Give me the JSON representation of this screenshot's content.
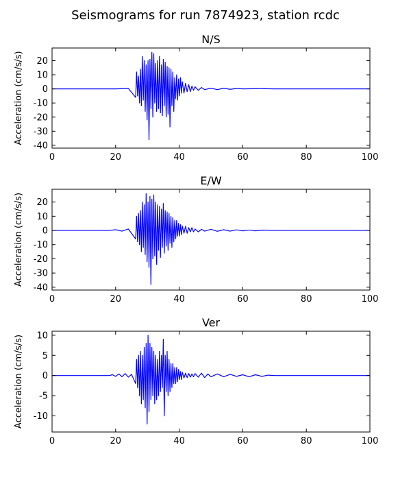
{
  "figure": {
    "title": "Seismograms for run 7874923, station rcdc"
  },
  "chart_data": [
    {
      "type": "line",
      "title": "N/S",
      "xlabel": "",
      "ylabel": "Acceleration (cm/s/s)",
      "xlim": [
        0,
        100
      ],
      "ylim": [
        -42,
        29
      ],
      "xticks": [
        0,
        20,
        40,
        60,
        80,
        100
      ],
      "yticks": [
        -40,
        -30,
        -20,
        -10,
        0,
        10,
        20
      ],
      "grid": false,
      "color": "#0000ff",
      "series": [
        {
          "x": [
            0,
            20,
            24,
            26.3,
            26.6,
            26.9,
            27.2,
            27.5,
            27.8,
            28.1,
            28.4,
            28.7,
            29.0,
            29.3,
            29.6,
            29.9,
            30.2,
            30.5,
            30.8,
            31.1,
            31.4,
            31.7,
            32.0,
            32.3,
            32.6,
            32.9,
            33.2,
            33.5,
            33.8,
            34.1,
            34.4,
            34.7,
            35.0,
            35.3,
            35.6,
            35.9,
            36.2,
            36.5,
            36.8,
            37.1,
            37.4,
            37.7,
            38.0,
            38.3,
            38.6,
            38.9,
            39.2,
            39.5,
            39.8,
            40.1,
            40.4,
            40.7,
            41.0,
            41.5,
            42.0,
            42.5,
            43.0,
            43.5,
            44.0,
            44.5,
            45.0,
            46.0,
            47.0,
            48,
            50,
            52,
            54,
            56,
            58,
            60,
            65,
            70,
            100
          ],
          "y": [
            0,
            0,
            0.3,
            -6,
            12,
            -5,
            9,
            -10,
            14,
            -12,
            23,
            -8,
            20,
            -16,
            17,
            -22,
            20,
            -36,
            21,
            -14,
            26,
            -20,
            25,
            -10,
            18,
            -16,
            20,
            -14,
            23,
            -17,
            17,
            -19,
            21,
            -12,
            19,
            -20,
            16,
            -18,
            15,
            -27,
            14,
            -12,
            12,
            -16,
            8,
            -7,
            10,
            -8,
            7,
            -5,
            8,
            -3,
            5,
            -3,
            4,
            -2,
            3,
            -2,
            2,
            -1,
            1.5,
            -1,
            1,
            -0.5,
            0.5,
            -0.5,
            0.5,
            -0.3,
            0.3,
            0,
            0.2,
            0,
            0
          ]
        }
      ]
    },
    {
      "type": "line",
      "title": "E/W",
      "xlabel": "",
      "ylabel": "Acceleration (cm/s/s)",
      "xlim": [
        0,
        100
      ],
      "ylim": [
        -42,
        29
      ],
      "xticks": [
        0,
        20,
        40,
        60,
        80,
        100
      ],
      "yticks": [
        -40,
        -30,
        -20,
        -10,
        0,
        10,
        20
      ],
      "grid": false,
      "color": "#0000ff",
      "series": [
        {
          "x": [
            0,
            18,
            20,
            22,
            24,
            26.3,
            26.6,
            26.9,
            27.2,
            27.5,
            27.8,
            28.1,
            28.4,
            28.7,
            29.0,
            29.3,
            29.6,
            29.9,
            30.2,
            30.5,
            30.8,
            31.1,
            31.4,
            31.7,
            32.0,
            32.3,
            32.6,
            32.9,
            33.2,
            33.5,
            33.8,
            34.1,
            34.4,
            34.7,
            35.0,
            35.3,
            35.6,
            35.9,
            36.2,
            36.5,
            36.8,
            37.1,
            37.4,
            37.7,
            38.0,
            38.3,
            38.6,
            38.9,
            39.2,
            39.5,
            39.8,
            40.1,
            40.4,
            40.7,
            41.0,
            41.5,
            42.0,
            42.5,
            43.0,
            43.5,
            44.0,
            44.5,
            45.0,
            46.0,
            47.0,
            48,
            50,
            52,
            54,
            56,
            58,
            60,
            62,
            64,
            66,
            70,
            100
          ],
          "y": [
            0,
            0,
            0.5,
            -0.5,
            1,
            -6,
            10,
            -8,
            12,
            -10,
            14,
            -15,
            20,
            -12,
            18,
            -17,
            26,
            -22,
            20,
            -26,
            24,
            -38,
            22,
            -20,
            25,
            -18,
            20,
            -24,
            18,
            -14,
            17,
            -19,
            15,
            -12,
            19,
            -16,
            14,
            -11,
            13,
            -14,
            12,
            -9,
            10,
            -12,
            9,
            -8,
            7,
            -6,
            7,
            -4,
            5,
            -4,
            4,
            -3,
            3,
            -2,
            3,
            -2,
            2,
            -1,
            2,
            -1,
            1,
            -1,
            0.8,
            -0.5,
            0.8,
            -0.6,
            0.5,
            -0.5,
            0.4,
            -0.3,
            0.3,
            -0.3,
            0.2,
            0,
            0
          ]
        }
      ]
    },
    {
      "type": "line",
      "title": "Ver",
      "xlabel": "",
      "ylabel": "Acceleration (cm/s/s)",
      "xlim": [
        0,
        100
      ],
      "ylim": [
        -14,
        11
      ],
      "xticks": [
        0,
        20,
        40,
        60,
        80,
        100
      ],
      "yticks": [
        -10,
        -5,
        0,
        5,
        10
      ],
      "grid": false,
      "color": "#0000ff",
      "series": [
        {
          "x": [
            0,
            18,
            19,
            20,
            21,
            22,
            23,
            24,
            25,
            26.3,
            26.6,
            26.9,
            27.2,
            27.5,
            27.8,
            28.1,
            28.4,
            28.7,
            29.0,
            29.3,
            29.6,
            29.9,
            30.2,
            30.5,
            30.8,
            31.1,
            31.4,
            31.7,
            32.0,
            32.3,
            32.6,
            32.9,
            33.2,
            33.5,
            33.8,
            34.1,
            34.4,
            34.7,
            35.0,
            35.3,
            35.6,
            35.9,
            36.2,
            36.5,
            36.8,
            37.1,
            37.4,
            37.7,
            38.0,
            38.3,
            38.6,
            38.9,
            39.2,
            39.5,
            39.8,
            40.1,
            40.4,
            40.7,
            41.0,
            41.5,
            42.0,
            42.5,
            43.0,
            43.5,
            44.0,
            44.5,
            45.0,
            46.0,
            47.0,
            48,
            49,
            50,
            52,
            54,
            56,
            58,
            60,
            62,
            64,
            66,
            68,
            70,
            100
          ],
          "y": [
            0,
            0,
            0.2,
            -0.2,
            0.4,
            -0.3,
            0.5,
            -0.4,
            0.3,
            -2,
            4,
            -3,
            5,
            -5,
            6,
            -7,
            5,
            -6,
            7,
            -8,
            8,
            -12,
            10,
            -9,
            8,
            -6,
            7,
            -5,
            6,
            -7,
            5,
            -6,
            4,
            -5,
            6,
            -4,
            5,
            -3,
            9,
            -10,
            5,
            -4,
            6,
            -5,
            4,
            -4,
            3,
            -3,
            3,
            -2,
            2,
            -2,
            2,
            -1.5,
            1.5,
            -1,
            1,
            -1,
            0.8,
            -0.6,
            0.6,
            -0.5,
            0.5,
            -0.4,
            0.4,
            -0.3,
            0.5,
            -0.4,
            0.6,
            -0.5,
            0.4,
            -0.3,
            0.4,
            -0.3,
            0.3,
            -0.2,
            0.2,
            -0.3,
            0.2,
            -0.2,
            0.1,
            0,
            0
          ]
        }
      ]
    }
  ]
}
